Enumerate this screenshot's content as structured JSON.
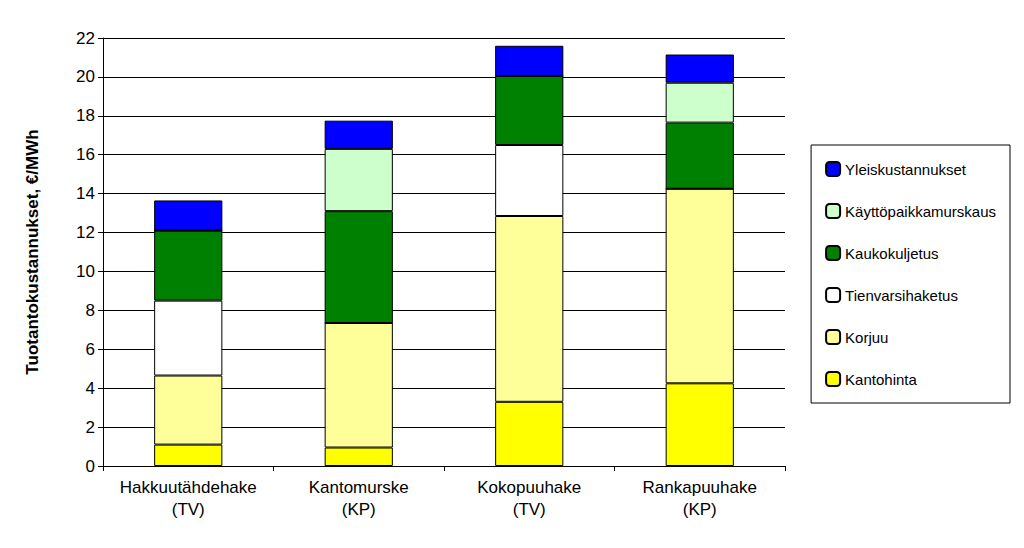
{
  "chart_data": {
    "type": "bar",
    "stacked": true,
    "y_label": "Tuotantokustannukset, €/MWh",
    "categories": [
      "Hakkuutähdehake\n(TV)",
      "Kantomurske\n(KP)",
      "Kokopuuhake\n(TV)",
      "Rankapuuhake\n(KP)"
    ],
    "series": [
      {
        "name": "Kantohinta",
        "color": "#ffff00",
        "values": [
          1.1,
          0.95,
          3.3,
          4.25
        ]
      },
      {
        "name": "Korjuu",
        "color": "#ffff99",
        "values": [
          3.55,
          6.4,
          9.55,
          10.0
        ]
      },
      {
        "name": "Tienvarsihaketus",
        "color": "#ffffff",
        "values": [
          3.85,
          0,
          3.65,
          0
        ]
      },
      {
        "name": "Kaukokuljetus",
        "color": "#008000",
        "values": [
          3.6,
          5.75,
          3.55,
          3.4
        ]
      },
      {
        "name": "Käyttöpaikkamurskaus",
        "color": "#ccffcc",
        "values": [
          0,
          3.2,
          0,
          2.05
        ]
      },
      {
        "name": "Yleiskustannukset",
        "color": "#0000ff",
        "values": [
          1.55,
          1.45,
          1.55,
          1.45
        ]
      }
    ],
    "ylim": [
      0,
      22
    ],
    "yticks": [
      0,
      2,
      4,
      6,
      8,
      10,
      12,
      14,
      16,
      18,
      20,
      22
    ],
    "grid": true,
    "legend": "right"
  }
}
